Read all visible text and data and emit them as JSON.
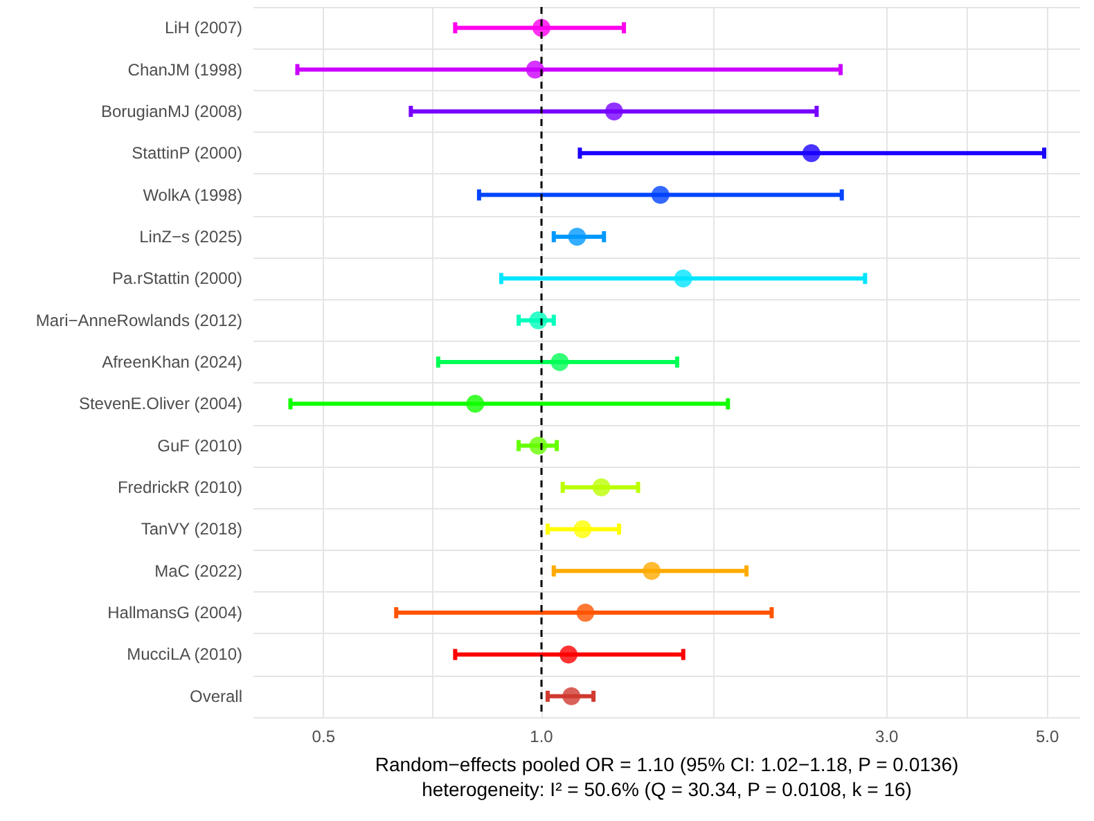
{
  "chart_data": {
    "type": "scatter",
    "orientation": "horizontal",
    "xlabel": "Random−effects pooled OR = 1.10 (95% CI: 1.02−1.18, P = 0.0136)\nheterogeneity: I² = 50.6% (Q = 30.34, P = 0.0108, k = 16)",
    "categories": [
      "LiH (2007)",
      "ChanJM (1998)",
      "BorugianMJ (2008)",
      "StattinP (2000)",
      "WolkA (1998)",
      "LinZ−s (2025)",
      "Pa.rStattin (2000)",
      "Mari−AnneRowlands (2012)",
      "AfreenKhan (2024)",
      "StevenE.Oliver (2004)",
      "GuF (2010)",
      "FredrickR (2010)",
      "TanVY (2018)",
      "MaC (2022)",
      "HallmansG (2004)",
      "MucciLA (2010)",
      "Overall"
    ],
    "values": [
      1.0,
      0.98,
      1.26,
      2.36,
      1.46,
      1.12,
      1.57,
      0.99,
      1.06,
      0.81,
      0.99,
      1.21,
      1.14,
      1.42,
      1.15,
      1.09,
      1.1
    ],
    "errors": [
      [
        0.76,
        1.3
      ],
      [
        0.46,
        2.59
      ],
      [
        0.66,
        2.4
      ],
      [
        1.13,
        4.95
      ],
      [
        0.82,
        2.6
      ],
      [
        1.04,
        1.22
      ],
      [
        0.88,
        2.8
      ],
      [
        0.93,
        1.04
      ],
      [
        0.72,
        1.54
      ],
      [
        0.45,
        1.81
      ],
      [
        0.93,
        1.05
      ],
      [
        1.07,
        1.36
      ],
      [
        1.02,
        1.28
      ],
      [
        1.04,
        1.92
      ],
      [
        0.63,
        2.08
      ],
      [
        0.76,
        1.57
      ],
      [
        1.02,
        1.18
      ]
    ],
    "colors": [
      "#ff00ee",
      "#cc00ff",
      "#7700ff",
      "#1a00ff",
      "#0044ff",
      "#0099ff",
      "#00e5ff",
      "#00ffbb",
      "#00ff55",
      "#11ff00",
      "#66ff00",
      "#bbff00",
      "#ffff00",
      "#ffaa00",
      "#ff5500",
      "#ff0000",
      "#d03a30"
    ],
    "xlim": [
      0.4,
      5.55
    ],
    "xticks": [
      {
        "value": 0.5,
        "label": "0.5"
      },
      {
        "value": 0.707,
        "label": null
      },
      {
        "value": 1,
        "label": "1.0"
      },
      {
        "value": 1.732,
        "label": null
      },
      {
        "value": 3,
        "label": "3.0"
      },
      {
        "value": 3.873,
        "label": null
      },
      {
        "value": 5,
        "label": "5.0"
      }
    ],
    "log": "x",
    "ref_lines": [
      {
        "axis": "x",
        "value": 1,
        "color": "#000000",
        "line_style": "dashed"
      }
    ],
    "grid": true,
    "marker": "circle"
  }
}
